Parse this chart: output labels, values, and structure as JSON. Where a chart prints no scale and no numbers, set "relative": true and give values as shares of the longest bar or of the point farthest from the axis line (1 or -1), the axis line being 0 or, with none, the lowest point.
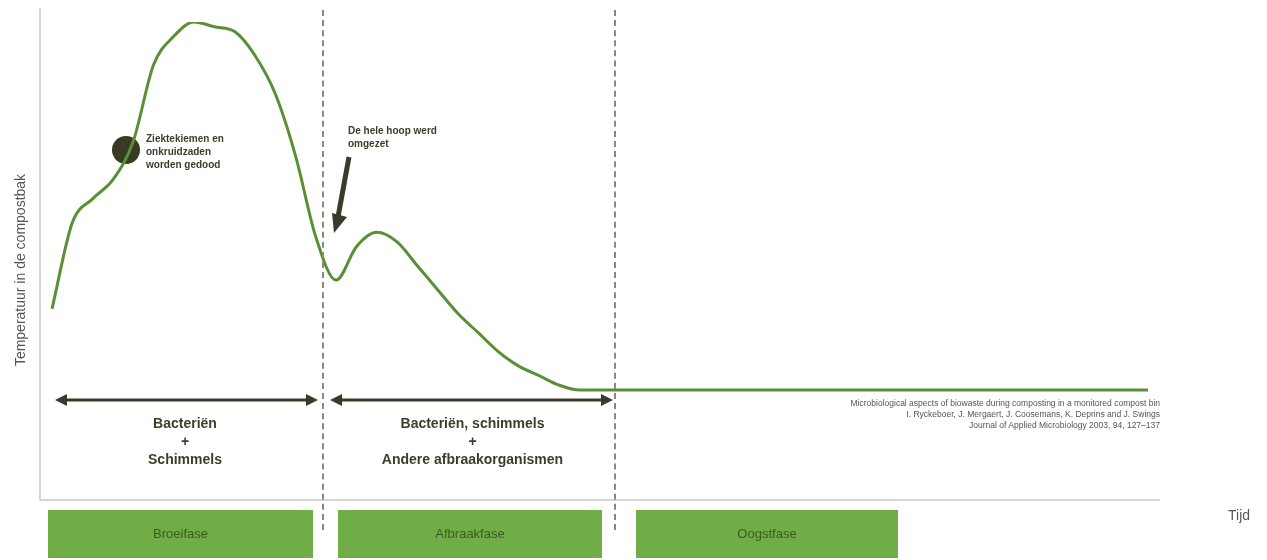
{
  "chart_data": {
    "type": "line",
    "relative": true,
    "xlabel": "Tijd",
    "ylabel": "Temperatuur in de compostbak",
    "color": "#5b8f35",
    "categories": [
      null,
      null,
      null,
      null,
      null,
      null,
      null,
      null,
      null,
      null,
      null,
      null,
      null,
      null,
      null,
      null,
      null,
      null,
      null,
      null,
      null,
      null,
      null,
      null,
      null,
      null,
      null,
      null,
      null,
      null,
      null,
      null,
      null,
      null,
      null,
      null,
      null,
      null,
      null,
      null,
      null,
      null,
      null,
      null,
      null,
      null,
      null,
      null,
      null,
      null,
      null,
      null,
      null,
      null,
      null
    ],
    "values": [
      0.4,
      0.58,
      0.63,
      0.67,
      0.75,
      0.91,
      0.97,
      1,
      0.99,
      0.98,
      0.93,
      0.85,
      0.72,
      0.55,
      0.46,
      0.53,
      0.56,
      0.54,
      0.49,
      0.44,
      0.39,
      0.35,
      0.31,
      0.28,
      0.26,
      0.24,
      0.23,
      0.23,
      0.23,
      0.23,
      0.23,
      0.23,
      0.23,
      0.23,
      0.23,
      0.23,
      0.23,
      0.23,
      0.23,
      0.23,
      0.23,
      0.23,
      0.23,
      0.23,
      0.23,
      0.23,
      0.23,
      0.23,
      0.23,
      0.23,
      0.23,
      0.23,
      0.23,
      0.23,
      0.23
    ],
    "annotations": [
      "Ziektekiemen en\nonkruidzaden\nworden gedood",
      "De hele hoop werd\nomgezet",
      "Bacteriën\n+\nSchimmels",
      "Bacteriën, schimmels\n+\nAndere afbraakorganismen",
      "Microbiological aspects of biowaste during composting in a monitored compost bin\nI. Ryckeboer, J. Mergaert, J. Coosemans, K. Deprins and J. Swings\nJournal of Applied Microbiology 2003, 94, 127–137",
      "Broeifase",
      "Afbraakfase",
      "Oogstfase"
    ]
  }
}
